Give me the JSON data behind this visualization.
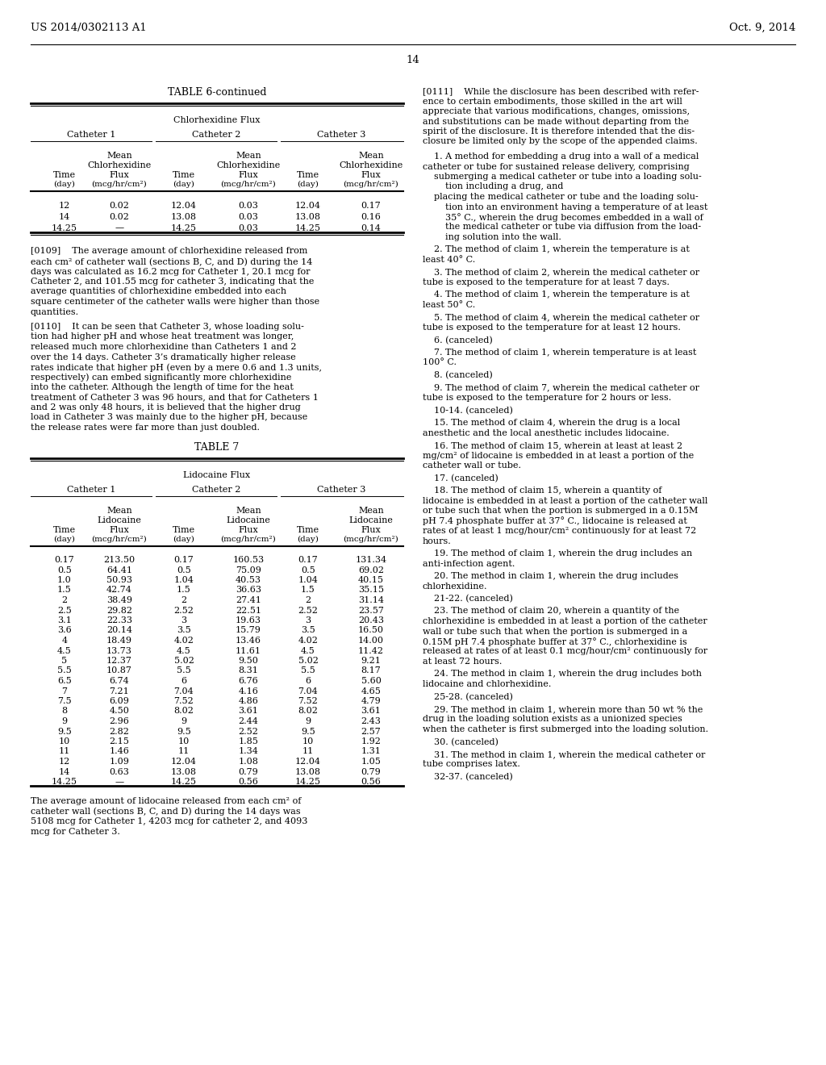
{
  "page_number": "14",
  "header_left": "US 2014/0302113 A1",
  "header_right": "Oct. 9, 2014",
  "bg_color": "#ffffff",
  "table6_title": "TABLE 6-continued",
  "table6_subtitle": "Chlorhexidine Flux",
  "table6_data": [
    [
      "12",
      "0.02",
      "12.04",
      "0.03",
      "12.04",
      "0.17"
    ],
    [
      "14",
      "0.02",
      "13.08",
      "0.03",
      "13.08",
      "0.16"
    ],
    [
      "14.25",
      "—",
      "14.25",
      "0.03",
      "14.25",
      "0.14"
    ]
  ],
  "para0109": "[0109]    The average amount of chlorhexidine released from each cm² of catheter wall (sections B, C, and D) during the 14 days was calculated as 16.2 mcg for Catheter 1, 20.1 mcg for Catheter 2, and 101.55 mcg for catheter 3, indicating that the average quantities of chlorhexidine embedded into each square centimeter of the catheter walls were higher than those quantities.",
  "para0110": "[0110]    It can be seen that Catheter 3, whose loading solution had higher pH and whose heat treatment was longer, released much more chlorhexidine than Catheters 1 and 2 over the 14 days. Catheter 3’s dramatically higher release rates indicate that higher pH (even by a mere 0.6 and 1.3 units, respectively) can embed significantly more chlorhexidine into the catheter. Although the length of time for the heat treatment of Catheter 3 was 96 hours, and that for Catheters 1 and 2 was only 48 hours, it is believed that the higher drug load in Catheter 3 was mainly due to the higher pH, because the release rates were far more than just doubled.",
  "table7_title": "TABLE 7",
  "table7_subtitle": "Lidocaine Flux",
  "table7_data": [
    [
      "0.17",
      "213.50",
      "0.17",
      "160.53",
      "0.17",
      "131.34"
    ],
    [
      "0.5",
      "64.41",
      "0.5",
      "75.09",
      "0.5",
      "69.02"
    ],
    [
      "1.0",
      "50.93",
      "1.04",
      "40.53",
      "1.04",
      "40.15"
    ],
    [
      "1.5",
      "42.74",
      "1.5",
      "36.63",
      "1.5",
      "35.15"
    ],
    [
      "2",
      "38.49",
      "2",
      "27.41",
      "2",
      "31.14"
    ],
    [
      "2.5",
      "29.82",
      "2.52",
      "22.51",
      "2.52",
      "23.57"
    ],
    [
      "3.1",
      "22.33",
      "3",
      "19.63",
      "3",
      "20.43"
    ],
    [
      "3.6",
      "20.14",
      "3.5",
      "15.79",
      "3.5",
      "16.50"
    ],
    [
      "4",
      "18.49",
      "4.02",
      "13.46",
      "4.02",
      "14.00"
    ],
    [
      "4.5",
      "13.73",
      "4.5",
      "11.61",
      "4.5",
      "11.42"
    ],
    [
      "5",
      "12.37",
      "5.02",
      "9.50",
      "5.02",
      "9.21"
    ],
    [
      "5.5",
      "10.87",
      "5.5",
      "8.31",
      "5.5",
      "8.17"
    ],
    [
      "6.5",
      "6.74",
      "6",
      "6.76",
      "6",
      "5.60"
    ],
    [
      "7",
      "7.21",
      "7.04",
      "4.16",
      "7.04",
      "4.65"
    ],
    [
      "7.5",
      "6.09",
      "7.52",
      "4.86",
      "7.52",
      "4.79"
    ],
    [
      "8",
      "4.50",
      "8.02",
      "3.61",
      "8.02",
      "3.61"
    ],
    [
      "9",
      "2.96",
      "9",
      "2.44",
      "9",
      "2.43"
    ],
    [
      "9.5",
      "2.82",
      "9.5",
      "2.52",
      "9.5",
      "2.57"
    ],
    [
      "10",
      "2.15",
      "10",
      "1.85",
      "10",
      "1.92"
    ],
    [
      "11",
      "1.46",
      "11",
      "1.34",
      "11",
      "1.31"
    ],
    [
      "12",
      "1.09",
      "12.04",
      "1.08",
      "12.04",
      "1.05"
    ],
    [
      "14",
      "0.63",
      "13.08",
      "0.79",
      "13.08",
      "0.79"
    ],
    [
      "14.25",
      "—",
      "14.25",
      "0.56",
      "14.25",
      "0.56"
    ]
  ],
  "table7_footer": "The average amount of lidocaine released from each cm² of catheter wall (sections B, C, and D) during the 14 days was 5108 mcg for Catheter 1, 4203 mcg for catheter 2, and 4093 mcg for Catheter 3.",
  "right_para0111_lines": [
    "[0111]    While the disclosure has been described with refer-",
    "ence to certain embodiments, those skilled in the art will",
    "appreciate that various modifications, changes, omissions,",
    "and substitutions can be made without departing from the",
    "spirit of the disclosure. It is therefore intended that the dis-",
    "closure be limited only by the scope of the appended claims."
  ],
  "claim1_lines": [
    "    1. A method for embedding a drug into a wall of a medical",
    "catheter or tube for sustained release delivery, comprising",
    "    submerging a medical catheter or tube into a loading solu-",
    "        tion including a drug, and",
    "    placing the medical catheter or tube and the loading solu-",
    "        tion into an environment having a temperature of at least",
    "        35° C., wherein the drug becomes embedded in a wall of",
    "        the medical catheter or tube via diffusion from the load-",
    "        ing solution into the wall."
  ],
  "claim2_lines": [
    "    2. The method of claim 1, wherein the temperature is at",
    "least 40° C."
  ],
  "claim3_lines": [
    "    3. The method of claim 2, wherein the medical catheter or",
    "tube is exposed to the temperature for at least 7 days."
  ],
  "claim4_lines": [
    "    4. The method of claim 1, wherein the temperature is at",
    "least 50° C."
  ],
  "claim5_lines": [
    "    5. The method of claim 4, wherein the medical catheter or",
    "tube is exposed to the temperature for at least 12 hours."
  ],
  "claim6_lines": [
    "    6. (canceled)"
  ],
  "claim7_lines": [
    "    7. The method of claim 1, wherein temperature is at least",
    "100° C."
  ],
  "claim8_lines": [
    "    8. (canceled)"
  ],
  "claim9_lines": [
    "    9. The method of claim 7, wherein the medical catheter or",
    "tube is exposed to the temperature for 2 hours or less."
  ],
  "claim1014_lines": [
    "    10-14. (canceled)"
  ],
  "claim15_lines": [
    "    15. The method of claim 4, wherein the drug is a local",
    "anesthetic and the local anesthetic includes lidocaine."
  ],
  "claim16_lines": [
    "    16. The method of claim 15, wherein at least at least 2",
    "mg/cm² of lidocaine is embedded in at least a portion of the",
    "catheter wall or tube."
  ],
  "claim17_lines": [
    "    17. (canceled)"
  ],
  "claim18_lines": [
    "    18. The method of claim 15, wherein a quantity of",
    "lidocaine is embedded in at least a portion of the catheter wall",
    "or tube such that when the portion is submerged in a 0.15M",
    "pH 7.4 phosphate buffer at 37° C., lidocaine is released at",
    "rates of at least 1 mcg/hour/cm² continuously for at least 72",
    "hours."
  ],
  "claim19_lines": [
    "    19. The method of claim 1, wherein the drug includes an",
    "anti-infection agent."
  ],
  "claim20_lines": [
    "    20. The method in claim 1, wherein the drug includes",
    "chlorhexidine."
  ],
  "claim2122_lines": [
    "    21-22. (canceled)"
  ],
  "claim23_lines": [
    "    23. The method of claim 20, wherein a quantity of the",
    "chlorhexidine is embedded in at least a portion of the catheter",
    "wall or tube such that when the portion is submerged in a",
    "0.15M pH 7.4 phosphate buffer at 37° C., chlorhexidine is",
    "released at rates of at least 0.1 mcg/hour/cm² continuously for",
    "at least 72 hours."
  ],
  "claim24_lines": [
    "    24. The method in claim 1, wherein the drug includes both",
    "lidocaine and chlorhexidine."
  ],
  "claim2528_lines": [
    "    25-28. (canceled)"
  ],
  "claim29_lines": [
    "    29. The method in claim 1, wherein more than 50 wt % the",
    "drug in the loading solution exists as a unionized species",
    "when the catheter is first submerged into the loading solution."
  ],
  "claim30_lines": [
    "    30. (canceled)"
  ],
  "claim31_lines": [
    "    31. The method in claim 1, wherein the medical catheter or",
    "tube comprises latex."
  ],
  "claim3237_lines": [
    "    32-37. (canceled)"
  ],
  "bold_claim_nums": [
    "1",
    "2",
    "3",
    "4",
    "5",
    "6",
    "7",
    "8",
    "9",
    "10-14",
    "15",
    "16",
    "17",
    "18",
    "19",
    "20",
    "21-22",
    "23",
    "24",
    "25-28",
    "29",
    "30",
    "31",
    "32-37"
  ]
}
